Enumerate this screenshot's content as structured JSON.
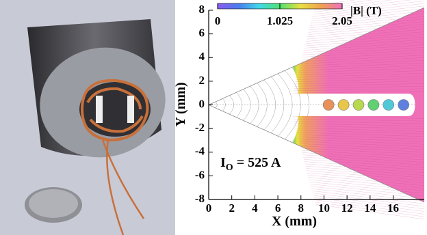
{
  "chart_data": {
    "type": "field-map",
    "xlabel": "X (mm)",
    "ylabel": "Y (mm)",
    "xlim": [
      0,
      18.7
    ],
    "ylim": [
      -8,
      8
    ],
    "xticks": [
      0,
      2,
      4,
      6,
      8,
      10,
      12,
      14,
      16
    ],
    "yticks": [
      -8,
      -6,
      -4,
      -2,
      0,
      2,
      4,
      6,
      8
    ],
    "colorbar": {
      "title": "|B| (T)",
      "lim": [
        0,
        2.05
      ],
      "ticks": [
        0,
        1.025,
        2.05
      ],
      "colors": [
        "#8a5cf0",
        "#4a7cf0",
        "#40d8e8",
        "#50e070",
        "#e8e040",
        "#f0a050",
        "#f070c0"
      ]
    },
    "annotation": {
      "symbol": "I",
      "subscript": "O",
      "text": "= 525 A"
    },
    "markers": {
      "x": [
        10.4,
        11.7,
        13.0,
        14.3,
        15.6,
        16.9
      ],
      "y": [
        0,
        0,
        0,
        0,
        0,
        0
      ],
      "colors": [
        "#e8915a",
        "#e8c64a",
        "#b8d850",
        "#60d070",
        "#50c8d8",
        "#6080e0"
      ]
    }
  }
}
